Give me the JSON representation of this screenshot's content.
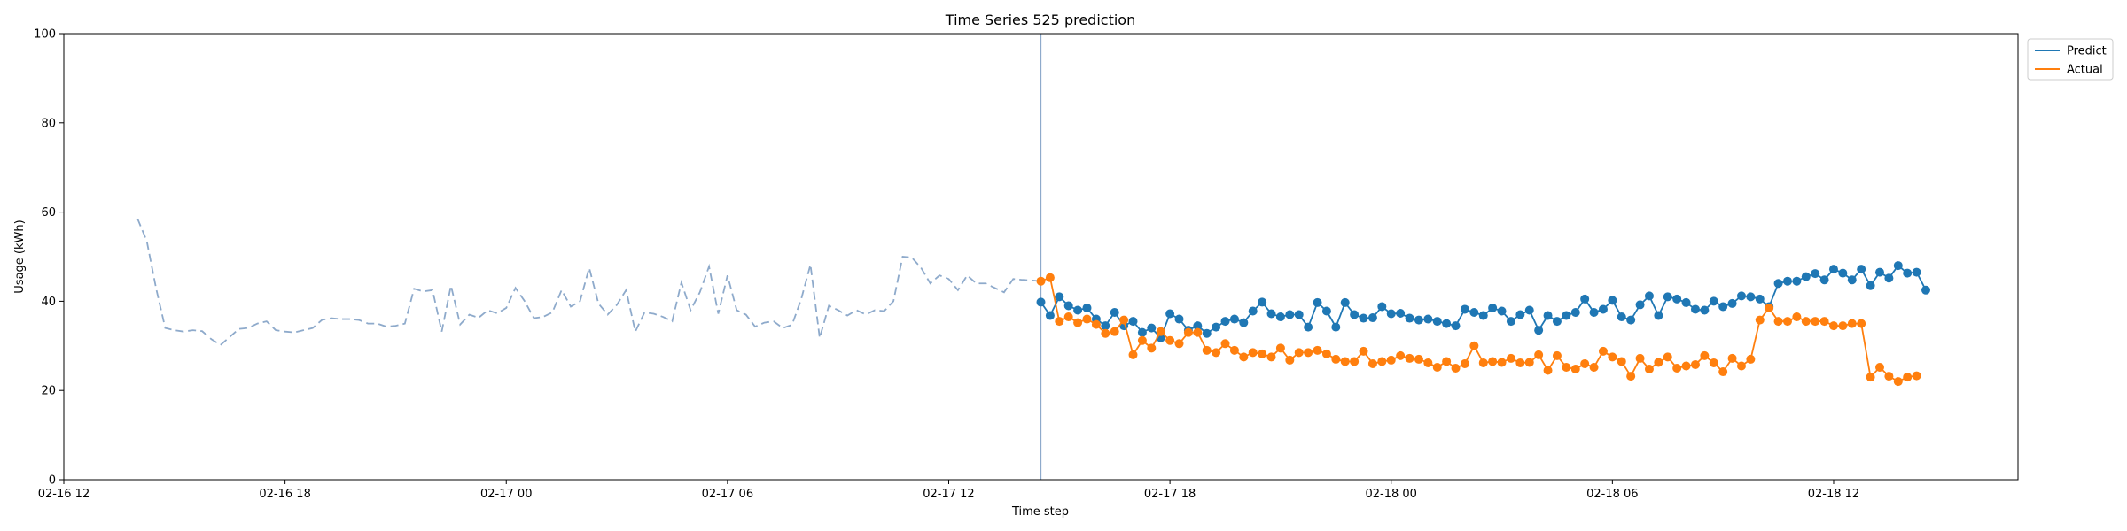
{
  "chart_data": {
    "type": "line",
    "title": "Time Series 525 prediction",
    "xlabel": "Time step",
    "ylabel": "Usage (kWh)",
    "ylim": [
      0,
      100
    ],
    "yticks": [
      0,
      20,
      40,
      60,
      80,
      100
    ],
    "xlim": [
      "02-16 12:00",
      "02-18 17:00"
    ],
    "xticks": [
      "02-16 12",
      "02-16 18",
      "02-17 00",
      "02-17 06",
      "02-17 12",
      "02-17 18",
      "02-18 00",
      "02-18 06",
      "02-18 12"
    ],
    "grid": false,
    "legend": "top-right",
    "forecast_start": "02-17 14:30",
    "history": {
      "style": "dashed",
      "color": "#8eaacb",
      "x": [
        "02-16 14:00",
        "02-16 14:15",
        "02-16 14:30",
        "02-16 14:45",
        "02-16 15:00",
        "02-16 15:15",
        "02-16 15:30",
        "02-16 15:45",
        "02-16 16:00",
        "02-16 16:15",
        "02-16 16:30",
        "02-16 16:45",
        "02-16 17:00",
        "02-16 17:15",
        "02-16 17:30",
        "02-16 17:45",
        "02-16 18:00",
        "02-16 18:15",
        "02-16 18:30",
        "02-16 18:45",
        "02-16 19:00",
        "02-16 19:15",
        "02-16 19:30",
        "02-16 19:45",
        "02-16 20:00",
        "02-16 20:15",
        "02-16 20:30",
        "02-16 20:45",
        "02-16 21:00",
        "02-16 21:15",
        "02-16 21:30",
        "02-16 21:45",
        "02-16 22:00",
        "02-16 22:15",
        "02-16 22:30",
        "02-16 22:45",
        "02-16 23:00",
        "02-16 23:15",
        "02-16 23:30",
        "02-16 23:45",
        "02-17 00:00",
        "02-17 00:15",
        "02-17 00:30",
        "02-17 00:45",
        "02-17 01:00",
        "02-17 01:15",
        "02-17 01:30",
        "02-17 01:45",
        "02-17 02:00",
        "02-17 02:15",
        "02-17 02:30",
        "02-17 02:45",
        "02-17 03:00",
        "02-17 03:15",
        "02-17 03:30",
        "02-17 03:45",
        "02-17 04:00",
        "02-17 04:15",
        "02-17 04:30",
        "02-17 04:45",
        "02-17 05:00",
        "02-17 05:15",
        "02-17 05:30",
        "02-17 05:45",
        "02-17 06:00",
        "02-17 06:15",
        "02-17 06:30",
        "02-17 06:45",
        "02-17 07:00",
        "02-17 07:15",
        "02-17 07:30",
        "02-17 07:45",
        "02-17 08:00",
        "02-17 08:15",
        "02-17 08:30",
        "02-17 08:45",
        "02-17 09:00",
        "02-17 09:15",
        "02-17 09:30",
        "02-17 09:45",
        "02-17 10:00",
        "02-17 10:15",
        "02-17 10:30",
        "02-17 10:45",
        "02-17 11:00",
        "02-17 11:15",
        "02-17 11:30",
        "02-17 11:45",
        "02-17 12:00",
        "02-17 12:15",
        "02-17 12:30",
        "02-17 12:45",
        "02-17 13:00",
        "02-17 13:15",
        "02-17 13:30",
        "02-17 13:45",
        "02-17 14:00",
        "02-17 14:15",
        "02-17 14:30"
      ],
      "values": [
        58.5,
        53.5,
        43,
        34,
        33.5,
        33.2,
        33.5,
        33.3,
        31.5,
        30.2,
        32,
        33.8,
        34,
        35,
        35.5,
        33.5,
        33.2,
        33,
        33.5,
        34,
        35.8,
        36.2,
        36,
        36,
        35.8,
        35,
        35,
        34.3,
        34.5,
        35,
        42.8,
        42.2,
        42.5,
        33.2,
        43.5,
        34.8,
        37,
        36.3,
        38,
        37.3,
        38.5,
        43,
        40,
        36.2,
        36.5,
        37.5,
        42.5,
        38.8,
        40,
        47.5,
        39.5,
        37,
        39.2,
        42.5,
        33.2,
        37.5,
        37.2,
        36.5,
        35.5,
        44.2,
        38,
        42,
        47.8,
        37.2,
        45.8,
        38,
        37,
        34.3,
        35.2,
        35.5,
        34,
        34.7,
        40.5,
        48.2,
        31.8,
        39,
        38,
        36.8,
        38,
        37,
        38,
        37.8,
        40,
        50,
        49.8,
        47.5,
        44,
        45.8,
        45,
        42.5,
        45.8,
        44,
        44,
        43,
        42,
        45,
        44.8,
        44.7,
        44.5
      ]
    },
    "series": [
      {
        "name": "Predict",
        "color": "#1f77b4",
        "values": [
          39.8,
          36.8,
          41,
          39,
          38,
          38.5,
          36,
          34.5,
          37.5,
          34.5,
          35.5,
          33,
          34,
          31.8,
          37.2,
          36,
          33.5,
          34.5,
          32.8,
          34.2,
          35.5,
          36,
          35.2,
          37.8,
          39.8,
          37.2,
          36.5,
          37,
          37,
          34.2,
          39.7,
          37.8,
          34.2,
          39.7,
          37,
          36.2,
          36.3,
          38.8,
          37.2,
          37.3,
          36.2,
          35.8,
          36,
          35.5,
          35,
          34.5,
          38.2,
          37.5,
          36.8,
          38.5,
          37.8,
          35.5,
          37,
          38,
          33.5,
          36.8,
          35.5,
          36.8,
          37.5,
          40.5,
          37.5,
          38.2,
          40.2,
          36.5,
          35.8,
          39.2,
          41.2,
          36.8,
          41,
          40.5,
          39.7,
          38.2,
          38,
          40,
          38.8,
          39.5,
          41.2,
          41,
          40.5,
          38.8,
          44,
          44.5,
          44.5,
          45.5,
          46.2,
          44.8,
          47.2,
          46.3,
          44.8,
          47.2,
          43.5,
          46.5,
          45.2,
          48,
          46.3,
          46.5,
          42.5
        ]
      },
      {
        "name": "Actual",
        "color": "#ff7f0e",
        "values": [
          44.5,
          45.3,
          35.5,
          36.5,
          35.2,
          36,
          34.8,
          32.8,
          33.2,
          35.8,
          28,
          31.2,
          29.5,
          33.2,
          31.2,
          30.5,
          33,
          33,
          29,
          28.5,
          30.5,
          29,
          27.5,
          28.5,
          28.2,
          27.5,
          29.5,
          26.8,
          28.5,
          28.5,
          29,
          28.2,
          27,
          26.5,
          26.5,
          28.8,
          26,
          26.5,
          26.8,
          27.8,
          27.2,
          27,
          26.2,
          25.2,
          26.5,
          25,
          26,
          30,
          26.2,
          26.5,
          26.3,
          27.2,
          26.2,
          26.3,
          28,
          24.5,
          27.8,
          25.2,
          24.8,
          26,
          25.2,
          28.8,
          27.5,
          26.5,
          23.2,
          27.2,
          24.8,
          26.3,
          27.5,
          25,
          25.5,
          25.8,
          27.8,
          26.2,
          24.2,
          27.2,
          25.5,
          27,
          35.8,
          38.5,
          35.5,
          35.5,
          36.5,
          35.5,
          35.5,
          35.5,
          34.5,
          34.5,
          35,
          35,
          23,
          25.2,
          23.2,
          22,
          23,
          23.3
        ]
      }
    ]
  }
}
